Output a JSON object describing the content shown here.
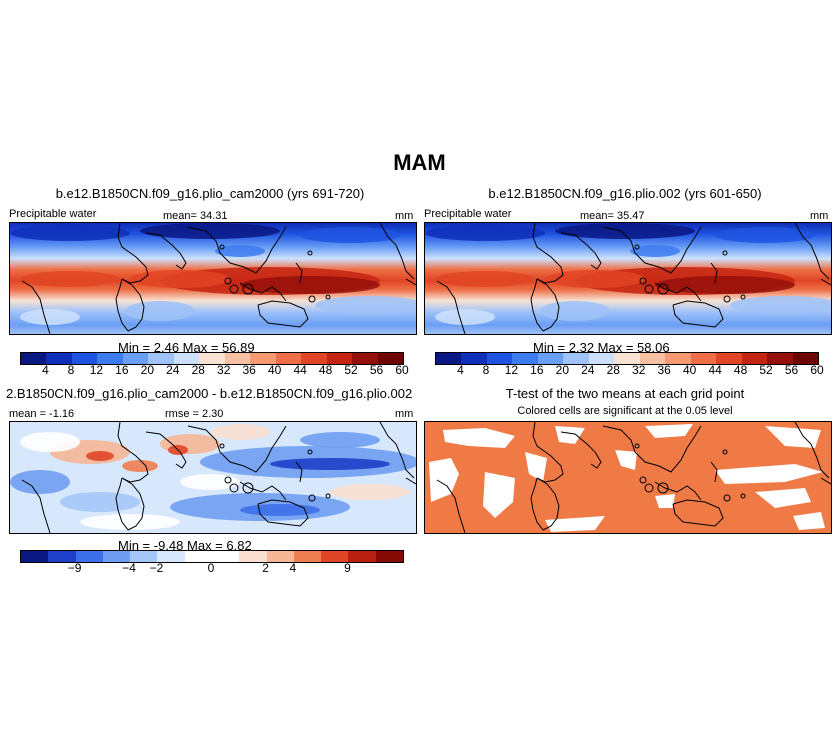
{
  "season": "MAM",
  "panels": {
    "p1": {
      "title": "b.e12.B1850CN.f09_g16.plio_cam2000 (yrs 691-720)",
      "variable": "Precipitable water",
      "mean": "mean=  34.31",
      "units": "mm",
      "minmax": "Min =    2.46  Max =   56.89"
    },
    "p2": {
      "title": "b.e12.B1850CN.f09_g16.plio.002 (yrs 601-650)",
      "variable": "Precipitable water",
      "mean": "mean=  35.47",
      "units": "mm",
      "minmax": "Min =    2.32  Max =   58.06"
    },
    "p3": {
      "title": "2.B1850CN.f09_g16.plio_cam2000 - b.e12.B1850CN.f09_g16.plio.002",
      "mean": "mean =  -1.16",
      "rmse": "rmse =    2.30",
      "units": "mm",
      "minmax": "Min =   -9.48  Max =    6.82"
    },
    "p4": {
      "title": "T-test of the two means at each grid point",
      "subtitle": "Colored cells are significant at the 0.05 level"
    }
  },
  "colorbars": {
    "absolute": {
      "colors": [
        "#0a1883",
        "#0f2fb8",
        "#1e54e0",
        "#3d7bf0",
        "#6b9ff5",
        "#9fc2f8",
        "#cde0fb",
        "#f7e2d4",
        "#f7c0a3",
        "#f59a73",
        "#ee6f47",
        "#e04525",
        "#c42412",
        "#96100b",
        "#6e0505"
      ],
      "labels": [
        "4",
        "8",
        "12",
        "16",
        "20",
        "24",
        "28",
        "32",
        "36",
        "40",
        "44",
        "48",
        "52",
        "56",
        "60"
      ]
    },
    "difference": {
      "colors": [
        "#0a1883",
        "#1e3fc8",
        "#3d6fe8",
        "#6f9df2",
        "#a5c6f8",
        "#d7e7fc",
        "#ffffff",
        "#ffffff",
        "#fbe0d2",
        "#f6b797",
        "#ef7e50",
        "#e04525",
        "#b8200f",
        "#840a06"
      ],
      "labels": [
        "-9",
        "-4",
        "-2",
        "0",
        "2",
        "4",
        "9"
      ]
    }
  },
  "colors": {
    "ttest": "#ef7a46"
  }
}
